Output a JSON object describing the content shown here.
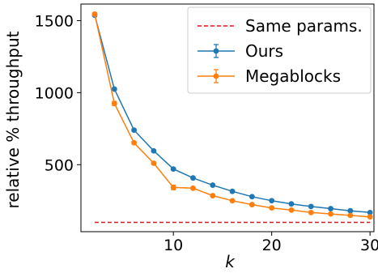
{
  "chart_data": {
    "type": "line",
    "title": "",
    "xlabel": "k",
    "ylabel": "relative % throughput",
    "xlim": [
      0.6,
      30.4
    ],
    "ylim": [
      35,
      1615
    ],
    "xticks": [
      10,
      20,
      30
    ],
    "yticks": [
      500,
      1000,
      1500
    ],
    "grid": false,
    "legend_position": "top-right",
    "reference_line": {
      "name": "Same params.",
      "y": 100,
      "x_range": [
        2,
        30
      ],
      "color": "#e8141c",
      "style": "dashed"
    },
    "series": [
      {
        "name": "Ours",
        "color": "#1f77b4",
        "x": [
          2,
          4,
          6,
          8,
          10,
          12,
          14,
          16,
          18,
          20,
          22,
          24,
          26,
          28,
          30
        ],
        "y": [
          1538,
          1025,
          740,
          596,
          470,
          408,
          358,
          315,
          278,
          250,
          228,
          210,
          195,
          180,
          168
        ],
        "err": [
          8,
          8,
          8,
          6,
          8,
          6,
          6,
          5,
          5,
          5,
          5,
          5,
          5,
          5,
          5
        ]
      },
      {
        "name": "Megablocks",
        "color": "#ff7f0e",
        "x": [
          2,
          4,
          6,
          8,
          10,
          12,
          14,
          16,
          18,
          20,
          22,
          24,
          26,
          28,
          30
        ],
        "y": [
          1545,
          925,
          652,
          510,
          342,
          337,
          285,
          250,
          223,
          200,
          185,
          168,
          158,
          148,
          138
        ],
        "err": [
          10,
          14,
          10,
          8,
          16,
          6,
          5,
          5,
          5,
          5,
          5,
          5,
          5,
          5,
          5
        ]
      }
    ]
  }
}
